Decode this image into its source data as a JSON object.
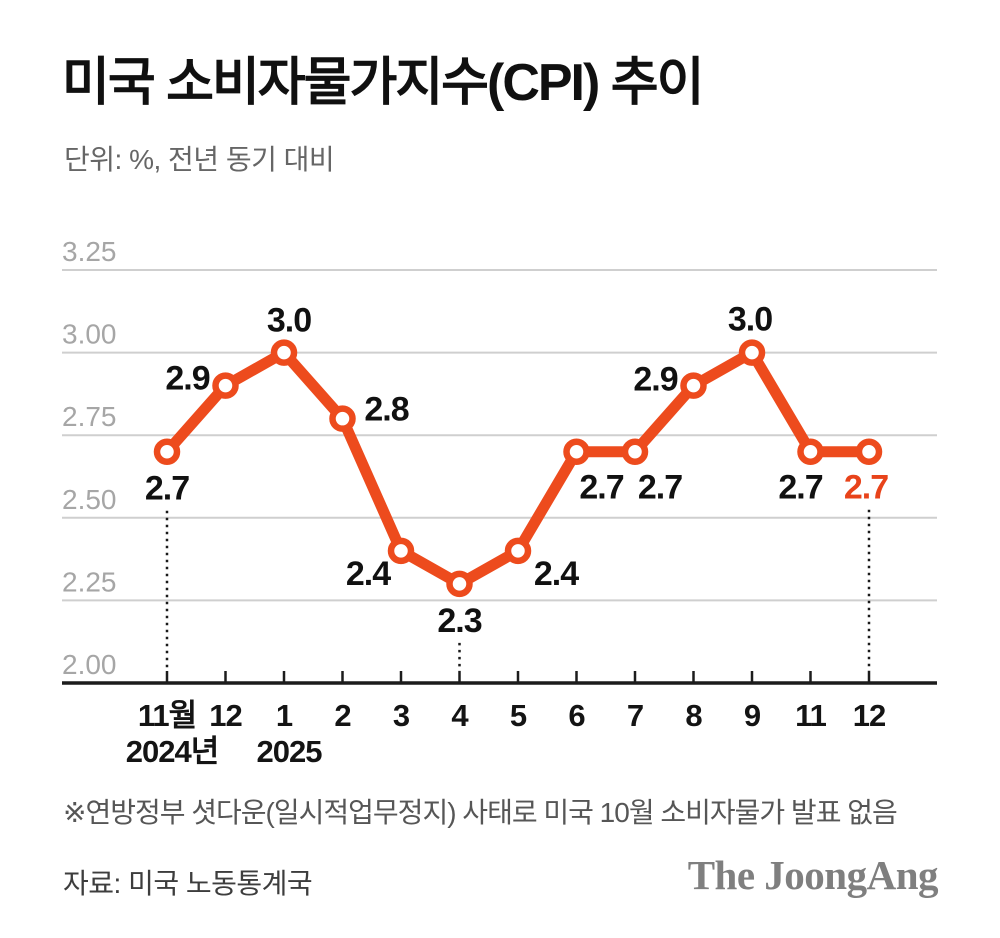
{
  "header": {
    "title": "미국 소비자물가지수(CPI) 추이",
    "subtitle": "단위: %, 전년 동기 대비"
  },
  "chart_data": {
    "type": "line",
    "title": "미국 소비자물가지수(CPI) 추이",
    "unit": "%, 전년 동기 대비",
    "categories": [
      "11월",
      "12",
      "1",
      "2",
      "3",
      "4",
      "5",
      "6",
      "7",
      "8",
      "9",
      "11",
      "12"
    ],
    "year_labels": [
      {
        "text": "2024년",
        "at_index": 0
      },
      {
        "text": "2025",
        "at_index": 2
      }
    ],
    "values": [
      2.7,
      2.9,
      3.0,
      2.8,
      2.4,
      2.3,
      2.4,
      2.7,
      2.7,
      2.9,
      3.0,
      2.7,
      2.7
    ],
    "yticks": [
      "3.25",
      "3.00",
      "2.75",
      "2.50",
      "2.25",
      "2.00"
    ],
    "ylim": [
      2.0,
      3.25
    ],
    "grid": true,
    "legend": "none",
    "dotted_reference_indices": [
      0,
      5,
      12
    ],
    "highlight_last_label": true,
    "colors": {
      "line": "#ED4B1D",
      "marker_fill": "#FFFFFF",
      "value_label": "#111111",
      "last_value_label": "#E8431A",
      "grid": "#CFCFCF",
      "axis": "#1C1C1C",
      "ytick_text": "#A6A6A6",
      "xtick_text": "#141414",
      "dotted": "#1A1A1A"
    }
  },
  "footnote": "※연방정부 셧다운(일시적업무정지) 사태로 미국 10월 소비자물가 발표 없음",
  "source": "자료: 미국 노동통계국",
  "logo": "The JoongAng"
}
